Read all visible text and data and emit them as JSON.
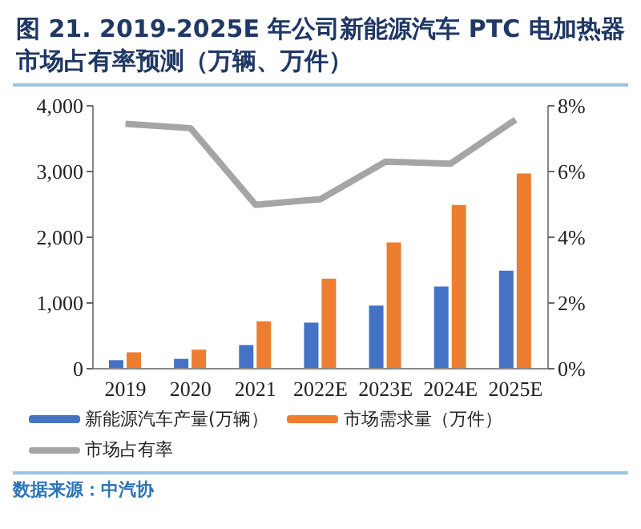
{
  "chart_data": {
    "type": "bar",
    "title": "图 21. 2019-2025E 年公司新能源汽车 PTC 电加热器市场占有率预测（万辆、万件）",
    "categories": [
      "2019",
      "2020",
      "2021",
      "2022E",
      "2023E",
      "2024E",
      "2025E"
    ],
    "series": [
      {
        "name": "新能源汽车产量(万辆）",
        "color": "#4472c4",
        "values": [
          130,
          150,
          360,
          700,
          960,
          1250,
          1490
        ]
      },
      {
        "name": "市场需求量（万件）",
        "color": "#ed7d31",
        "values": [
          250,
          290,
          720,
          1370,
          1920,
          2490,
          2970
        ]
      },
      {
        "name": "市场占有率",
        "type": "line",
        "axis": "y2",
        "color": "#a5a5a5",
        "marker": "none",
        "values": [
          7.45,
          7.32,
          4.99,
          5.16,
          6.3,
          6.24,
          7.58
        ]
      }
    ],
    "ylim": [
      0,
      4000
    ],
    "yticks": [
      {
        "value": 0,
        "label": "0"
      },
      {
        "value": 1000,
        "label": "1,000"
      },
      {
        "value": 2000,
        "label": "2,000"
      },
      {
        "value": 3000,
        "label": "3,000"
      },
      {
        "value": 4000,
        "label": "4,000"
      }
    ],
    "y2lim": [
      0,
      8
    ],
    "y2ticks": [
      {
        "value": 0,
        "label": "0%"
      },
      {
        "value": 2,
        "label": "2%"
      },
      {
        "value": 4,
        "label": "4%"
      },
      {
        "value": 6,
        "label": "6%"
      },
      {
        "value": 8,
        "label": "8%"
      }
    ],
    "legend": "bottom",
    "annotations": [
      "数据来源：中汽协"
    ]
  }
}
